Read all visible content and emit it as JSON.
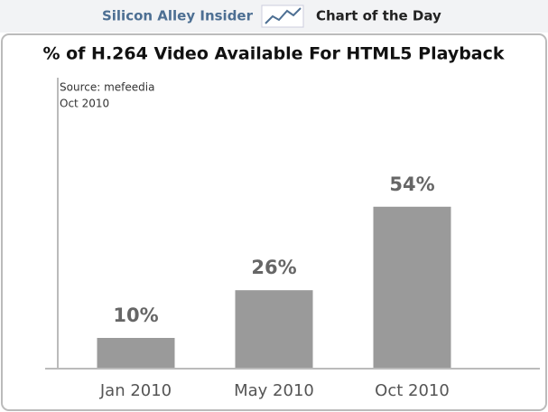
{
  "header": {
    "brand": "Silicon Alley Insider",
    "section": "Chart of the Day"
  },
  "chart_data": {
    "type": "bar",
    "title": "% of H.264 Video Available For HTML5 Playback",
    "source": "Source: mefeedia",
    "note": "Oct 2010",
    "categories": [
      "Jan 2010",
      "May 2010",
      "Oct 2010"
    ],
    "values": [
      10,
      26,
      54
    ],
    "value_labels": [
      "10%",
      "26%",
      "54%"
    ],
    "color": "#9a9a9a",
    "ylim": [
      0,
      100
    ]
  }
}
